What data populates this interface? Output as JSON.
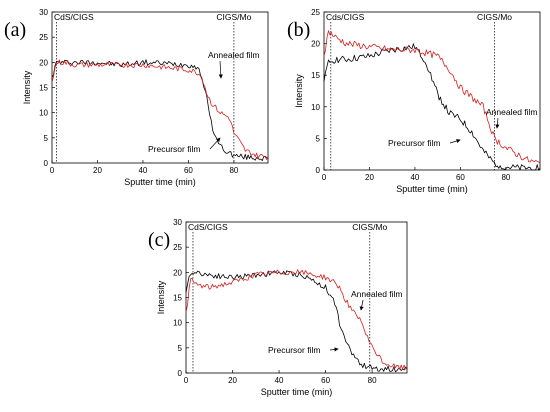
{
  "chart_data": [
    {
      "type": "line",
      "panel_label": "(a)",
      "xlabel": "Sputter time (min)",
      "ylabel": "Intensity",
      "xlim": [
        0,
        95
      ],
      "ylim": [
        0,
        30
      ],
      "xticks": [
        0,
        20,
        40,
        60,
        80
      ],
      "yticks": [
        0,
        5,
        10,
        15,
        20,
        25,
        30
      ],
      "vlines": [
        {
          "x": 2,
          "label": "CdS/CIGS"
        },
        {
          "x": 80,
          "label": "CIGS/Mo"
        }
      ],
      "annotations": [
        "Annealed film",
        "Precursor film"
      ],
      "grid": false,
      "series": [
        {
          "name": "Precursor film",
          "color": "#000000",
          "x": [
            0,
            2,
            5,
            10,
            20,
            30,
            40,
            50,
            60,
            64,
            66,
            68,
            70,
            72,
            74,
            76,
            78,
            80,
            85,
            90,
            95
          ],
          "y": [
            17,
            20,
            20,
            20,
            20,
            19.5,
            20,
            19.8,
            19.5,
            19,
            17,
            13,
            8,
            5,
            3.5,
            2.5,
            2,
            1.5,
            1.2,
            1,
            1
          ]
        },
        {
          "name": "Annealed film",
          "color": "#d62020",
          "x": [
            0,
            2,
            5,
            10,
            20,
            30,
            40,
            50,
            60,
            64,
            66,
            68,
            70,
            72,
            74,
            76,
            78,
            80,
            85,
            90,
            95
          ],
          "y": [
            16,
            20,
            20,
            19.5,
            19.5,
            19.5,
            19.5,
            19,
            18.5,
            18,
            17,
            14,
            12,
            11,
            10,
            9.5,
            9,
            6,
            2.5,
            1.5,
            1.2
          ]
        }
      ]
    },
    {
      "type": "line",
      "panel_label": "(b)",
      "xlabel": "Sputter time (min)",
      "ylabel": "Intensity",
      "xlim": [
        0,
        95
      ],
      "ylim": [
        0,
        25
      ],
      "xticks": [
        0,
        20,
        40,
        60,
        80
      ],
      "yticks": [
        0,
        5,
        10,
        15,
        20,
        25
      ],
      "vlines": [
        {
          "x": 3,
          "label": "Cds/CIGS"
        },
        {
          "x": 75,
          "label": "CIGS/Mo"
        }
      ],
      "annotations": [
        "Annealed film",
        "Precursor film"
      ],
      "grid": false,
      "series": [
        {
          "name": "Precursor film",
          "color": "#000000",
          "x": [
            0,
            2,
            5,
            10,
            20,
            30,
            40,
            45,
            50,
            55,
            60,
            65,
            70,
            75,
            80,
            85,
            90,
            95
          ],
          "y": [
            14,
            17,
            17.5,
            17.5,
            18,
            19,
            19.5,
            17,
            12,
            9,
            8,
            6,
            3,
            1,
            0.5,
            0.3,
            0.3,
            0.3
          ]
        },
        {
          "name": "Annealed film",
          "color": "#d62020",
          "x": [
            0,
            2,
            5,
            10,
            20,
            30,
            40,
            45,
            50,
            55,
            60,
            65,
            70,
            75,
            80,
            85,
            90,
            95
          ],
          "y": [
            18,
            22,
            21,
            20,
            19.5,
            19,
            19,
            18.5,
            18,
            16,
            13,
            11.5,
            10,
            5,
            3.5,
            2.5,
            1.5,
            1
          ]
        }
      ]
    },
    {
      "type": "line",
      "panel_label": "(c)",
      "xlabel": "Sputter time (min)",
      "ylabel": "Intensity",
      "xlim": [
        0,
        95
      ],
      "ylim": [
        0,
        30
      ],
      "xticks": [
        0,
        20,
        40,
        60,
        80
      ],
      "yticks": [
        0,
        5,
        10,
        15,
        20,
        25,
        30
      ],
      "vlines": [
        {
          "x": 3,
          "label": "CdS/CIGS"
        },
        {
          "x": 79,
          "label": "CIGS/Mo"
        }
      ],
      "annotations": [
        "Annealed film",
        "Precursor film"
      ],
      "grid": false,
      "series": [
        {
          "name": "Precursor film",
          "color": "#000000",
          "x": [
            0,
            2,
            5,
            10,
            20,
            30,
            40,
            50,
            60,
            64,
            66,
            68,
            70,
            72,
            74,
            76,
            78,
            80,
            85,
            90,
            95
          ],
          "y": [
            16,
            20,
            20,
            19.5,
            19,
            19.5,
            20,
            19.5,
            17,
            14,
            10,
            7,
            5,
            3.5,
            2.5,
            1.5,
            1.2,
            1,
            0.8,
            0.8,
            0.8
          ]
        },
        {
          "name": "Annealed film",
          "color": "#d62020",
          "x": [
            0,
            2,
            5,
            10,
            20,
            30,
            40,
            50,
            60,
            64,
            66,
            68,
            70,
            72,
            74,
            76,
            78,
            80,
            85,
            90,
            95
          ],
          "y": [
            12,
            18.5,
            17.5,
            17,
            18,
            19.5,
            20,
            20,
            19,
            18,
            17,
            15,
            13.5,
            12,
            11,
            9.5,
            7,
            5,
            2,
            1.2,
            1
          ]
        }
      ]
    }
  ]
}
